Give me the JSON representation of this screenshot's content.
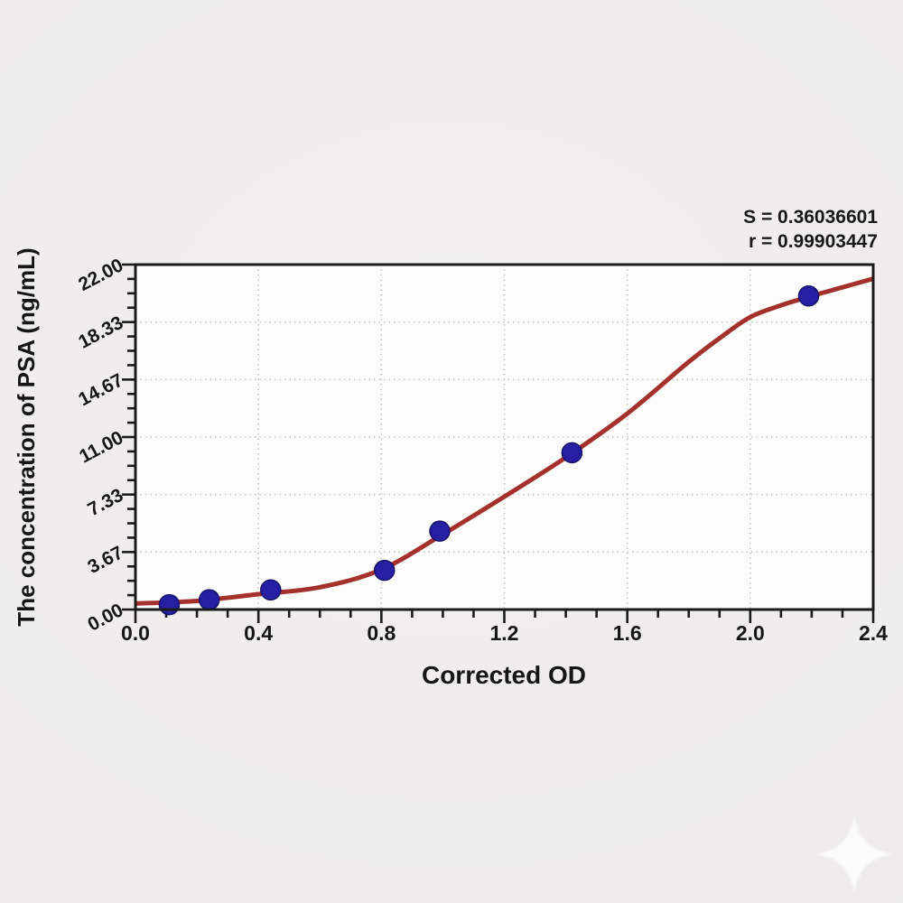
{
  "annotation": {
    "line1": "S = 0.36036601",
    "line2": "r = 0.99903447"
  },
  "chart_data": {
    "type": "scatter",
    "title": "",
    "xlabel": "Corrected OD",
    "ylabel": "The concentration of PSA (ng/mL)",
    "xlim": [
      0,
      2.4
    ],
    "ylim": [
      0,
      22
    ],
    "grid": "dotted-major",
    "legend_position": "none",
    "x_ticks": {
      "values": [
        0,
        0.4,
        0.8,
        1.2,
        1.6,
        2.0,
        2.4
      ],
      "labels": [
        "0.0",
        "0.4",
        "0.8",
        "1.2",
        "1.6",
        "2.0",
        "2.4"
      ],
      "minors_between_majors": 3
    },
    "y_ticks": {
      "values": [
        0,
        3.6667,
        7.3333,
        11,
        14.6667,
        18.3333,
        22
      ],
      "labels": [
        "0.00",
        "3.67",
        "7.33",
        "11.00",
        "14.67",
        "18.33",
        "22.00"
      ],
      "minors_between_majors": 3
    },
    "points": [
      {
        "x": 0.11,
        "y": 0.3125
      },
      {
        "x": 0.24,
        "y": 0.625
      },
      {
        "x": 0.44,
        "y": 1.25
      },
      {
        "x": 0.81,
        "y": 2.5
      },
      {
        "x": 0.99,
        "y": 5.0
      },
      {
        "x": 1.42,
        "y": 10.0
      },
      {
        "x": 2.19,
        "y": 20.0
      }
    ],
    "fit_curve": [
      [
        0.0,
        0.38
      ],
      [
        0.2,
        0.55
      ],
      [
        0.4,
        0.98
      ],
      [
        0.6,
        1.42
      ],
      [
        0.8,
        2.55
      ],
      [
        1.0,
        4.8
      ],
      [
        1.2,
        7.2
      ],
      [
        1.4,
        9.7
      ],
      [
        1.6,
        12.5
      ],
      [
        1.8,
        15.8
      ],
      [
        1.9,
        17.3
      ],
      [
        2.0,
        18.65
      ],
      [
        2.1,
        19.4
      ],
      [
        2.2,
        20.0
      ],
      [
        2.3,
        20.55
      ],
      [
        2.4,
        21.1
      ]
    ],
    "fit_stats": {
      "S": "0.36036601",
      "r": "0.99903447"
    }
  },
  "colors": {
    "curve": "#a5312c",
    "point_fill": "#261fa3",
    "point_edge": "#171268",
    "grid": "#c9c5c1",
    "frame": "#1b1b1b",
    "plot_bg": "#fcfcfa",
    "text": "#161616"
  },
  "watermark": {
    "icon": "sparkle-icon"
  }
}
